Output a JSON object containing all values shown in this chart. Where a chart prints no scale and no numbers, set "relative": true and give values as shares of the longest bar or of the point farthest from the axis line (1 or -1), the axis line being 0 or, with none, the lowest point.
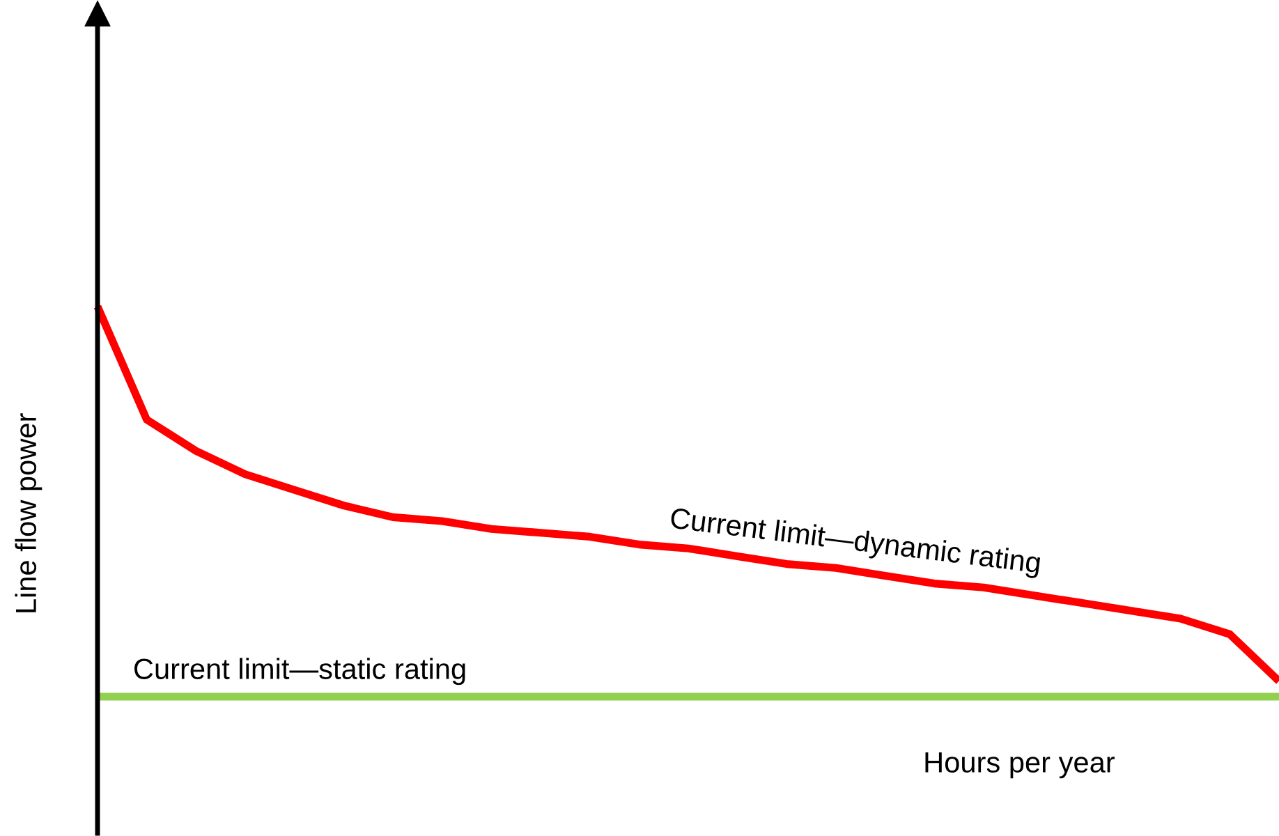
{
  "chart_data": {
    "type": "line",
    "relative": true,
    "xlabel": "Hours per year",
    "ylabel": "Line flow power",
    "categories": [
      null,
      null,
      null,
      null,
      null,
      null,
      null,
      null,
      null,
      null,
      null,
      null,
      null,
      null,
      null,
      null,
      null,
      null,
      null,
      null,
      null,
      null,
      null,
      null,
      null
    ],
    "series": [
      {
        "name": "Current limit—dynamic rating",
        "color": "#ff0000",
        "values": [
          1,
          0.71,
          0.63,
          0.57,
          0.53,
          0.49,
          0.46,
          0.45,
          0.43,
          0.42,
          0.41,
          0.39,
          0.38,
          0.36,
          0.34,
          0.33,
          0.31,
          0.29,
          0.28,
          0.26,
          0.24,
          0.22,
          0.2,
          0.16,
          0.04
        ]
      },
      {
        "name": "Current limit—static rating",
        "color": "#92d050",
        "values": [
          0,
          0,
          0,
          0,
          0,
          0,
          0,
          0,
          0,
          0,
          0,
          0,
          0,
          0,
          0,
          0,
          0,
          0,
          0,
          0,
          0,
          0,
          0,
          0,
          0
        ]
      }
    ],
    "legend": false
  }
}
